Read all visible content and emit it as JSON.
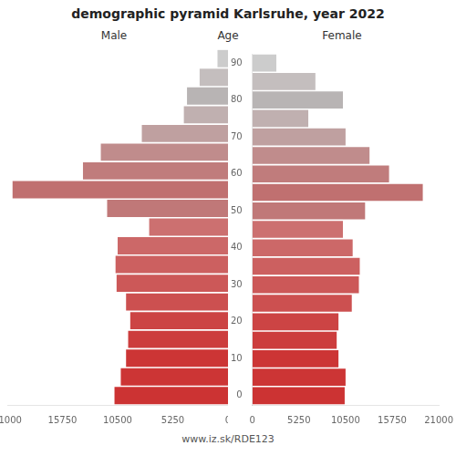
{
  "chart_data": {
    "type": "pyramid",
    "title": "demographic pyramid Karlsruhe, year 2022",
    "y_label": "Age",
    "annotations": [
      "www.iz.sk/RDE123"
    ],
    "orientation": "horizontal",
    "categories": [
      "0",
      null,
      "10",
      null,
      "20",
      null,
      "30",
      null,
      "40",
      null,
      "50",
      null,
      "60",
      null,
      "70",
      null,
      "80",
      null,
      "90"
    ],
    "series": [
      {
        "name": "Male",
        "values": [
          10800,
          10200,
          9700,
          9500,
          9300,
          9700,
          10600,
          10700,
          10500,
          7500,
          11500,
          20500,
          13800,
          12100,
          8200,
          4200,
          3900,
          2700,
          1000
        ]
      },
      {
        "name": "Female",
        "values": [
          10400,
          10500,
          9700,
          9500,
          9700,
          11200,
          12000,
          12100,
          11300,
          10200,
          12700,
          19200,
          15400,
          13200,
          10500,
          6300,
          10200,
          7100,
          2700
        ]
      }
    ],
    "colors": [
      "#cc3333",
      "#cc3535",
      "#cc3535",
      "#cc3d3d",
      "#cc4444",
      "#cc5050",
      "#cc5858",
      "#cc6060",
      "#cc6868",
      "#cc7070",
      "#c07878",
      "#c07070",
      "#c07c7c",
      "#c08c8c",
      "#bfa0a0",
      "#c0b0b0",
      "#b8b4b4",
      "#c4bebe",
      "#cccccc"
    ],
    "xlim": [
      0,
      21000
    ],
    "xticks": [
      0,
      5250,
      10500,
      15750,
      21000
    ],
    "grid": false
  }
}
